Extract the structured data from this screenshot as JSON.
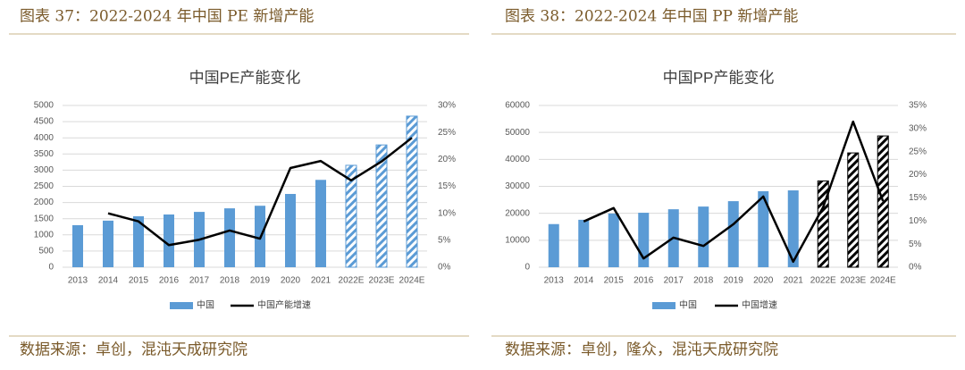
{
  "chart_data": [
    {
      "type": "bar",
      "caption": "图表 37：2022-2024 年中国 PE 新增产能",
      "title": "中国PE产能变化",
      "source": "数据来源：卓创，混沌天成研究院",
      "categories": [
        "2013",
        "2014",
        "2015",
        "2016",
        "2017",
        "2018",
        "2019",
        "2020",
        "2021",
        "2022E",
        "2023E",
        "2024E"
      ],
      "hatched": [
        false,
        false,
        false,
        false,
        false,
        false,
        false,
        false,
        false,
        true,
        true,
        true
      ],
      "hatch_color": "#5b9bd5",
      "series": [
        {
          "name": "中国",
          "color": "#5b9bd5",
          "values": [
            1300,
            1440,
            1575,
            1630,
            1710,
            1820,
            1900,
            2265,
            2700,
            3150,
            3780,
            4670
          ]
        },
        {
          "name": "中国产能增速",
          "color": "#000000",
          "axis": "y2",
          "values": [
            null,
            10,
            8.5,
            4.1,
            5.1,
            6.8,
            5.3,
            18.4,
            19.7,
            16.1,
            19.6,
            24
          ]
        }
      ],
      "ylim": [
        0,
        5000
      ],
      "yticks": [
        0,
        500,
        1000,
        1500,
        2000,
        2500,
        3000,
        3500,
        4000,
        4500,
        5000
      ],
      "y2lim": [
        0,
        30
      ],
      "y2ticks": [
        {
          "value": 0,
          "label": "0%"
        },
        {
          "value": 5,
          "label": "5%"
        },
        {
          "value": 10,
          "label": "10%"
        },
        {
          "value": 15,
          "label": "15%"
        },
        {
          "value": 20,
          "label": "20%"
        },
        {
          "value": 25,
          "label": "25%"
        },
        {
          "value": 30,
          "label": "30%"
        }
      ],
      "grid": true,
      "legend": "bottom"
    },
    {
      "type": "bar",
      "caption": "图表 38：2022-2024 年中国 PP 新增产能",
      "title": "中国PP产能变化",
      "source": "数据来源：卓创，隆众，混沌天成研究院",
      "categories": [
        "2013",
        "2014",
        "2015",
        "2016",
        "2017",
        "2018",
        "2019",
        "2020",
        "2021",
        "2022E",
        "2023E",
        "2024E"
      ],
      "hatched": [
        false,
        false,
        false,
        false,
        false,
        false,
        false,
        false,
        false,
        true,
        true,
        true
      ],
      "hatch_color": "#000000",
      "series": [
        {
          "name": "中国",
          "color": "#5b9bd5",
          "values": [
            16000,
            17600,
            19900,
            20200,
            21500,
            22500,
            24500,
            28200,
            28500,
            32000,
            42400,
            48700
          ]
        },
        {
          "name": "中国增速",
          "color": "#000000",
          "axis": "y2",
          "values": [
            null,
            9.9,
            12.8,
            1.9,
            6.4,
            4.6,
            9.3,
            15.3,
            1.2,
            13,
            31.5,
            14.3
          ]
        }
      ],
      "ylim": [
        0,
        60000
      ],
      "yticks": [
        0,
        10000,
        20000,
        30000,
        40000,
        50000,
        60000
      ],
      "y2lim": [
        0,
        35
      ],
      "y2ticks": [
        {
          "value": 0,
          "label": "0%"
        },
        {
          "value": 5,
          "label": "5%"
        },
        {
          "value": 10,
          "label": "10%"
        },
        {
          "value": 15,
          "label": "15%"
        },
        {
          "value": 20,
          "label": "20%"
        },
        {
          "value": 25,
          "label": "25%"
        },
        {
          "value": 30,
          "label": "30%"
        },
        {
          "value": 35,
          "label": "35%"
        }
      ],
      "grid": true,
      "legend": "bottom"
    }
  ]
}
